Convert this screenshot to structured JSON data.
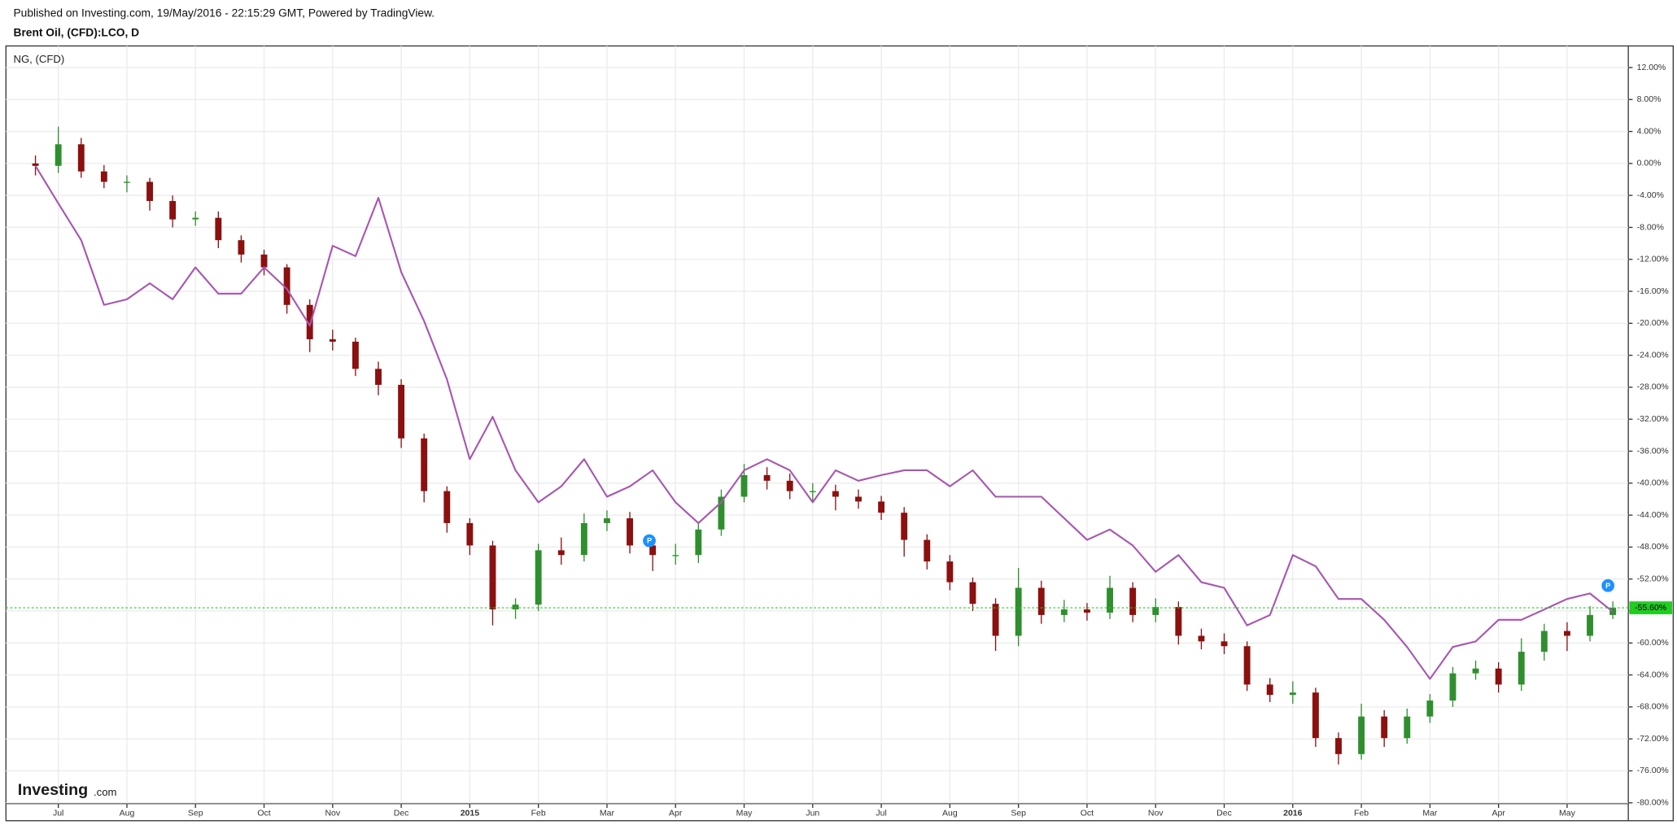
{
  "chart_data": {
    "type": "candlestick",
    "published": "Published on Investing.com, 19/May/2016 - 22:15:29 GMT, Powered by TradingView.",
    "categories": [
      null,
      "Jul",
      null,
      null,
      "Aug",
      null,
      null,
      "Sep",
      null,
      null,
      "Oct",
      null,
      null,
      "Nov",
      null,
      null,
      "Dec",
      null,
      null,
      "2015",
      null,
      null,
      "Feb",
      null,
      null,
      "Mar",
      null,
      null,
      "Apr",
      null,
      null,
      "May",
      null,
      null,
      "Jun",
      null,
      null,
      "Jul",
      null,
      null,
      "Aug",
      null,
      null,
      "Sep",
      null,
      null,
      "Oct",
      null,
      null,
      "Nov",
      null,
      null,
      "Dec",
      null,
      null,
      "2016",
      null,
      null,
      "Feb",
      null,
      null,
      "Mar",
      null,
      null,
      "Apr",
      null,
      null,
      "May",
      null,
      null
    ],
    "series": [
      {
        "name": "Brent Oil, (CFD):LCO, D",
        "type": "candlestick",
        "up_color": "#2f8f2f",
        "down_color": "#8b1010",
        "open": [
          0,
          -0.3,
          2.4,
          -1,
          -2.3,
          -2.3,
          -4.7,
          -7,
          -6.8,
          -9.6,
          -11.4,
          -13,
          -17.7,
          -22,
          -22.3,
          -25.7,
          -27.7,
          -34.4,
          -41,
          -45,
          -47.8,
          -55.8,
          -55.2,
          -48.4,
          -49,
          -45,
          -44.4,
          -47.8,
          -49,
          -49,
          -45.8,
          -41.7,
          -39,
          -39.7,
          -41,
          -41,
          -41.7,
          -42.3,
          -43.7,
          -47.1,
          -49.8,
          -52.4,
          -55.1,
          -59.1,
          -53.1,
          -56.5,
          -55.8,
          -56.2,
          -53.1,
          -56.5,
          -55.5,
          -59.1,
          -59.8,
          -60.4,
          -65.2,
          -66.5,
          -66.2,
          -71.9,
          -73.9,
          -69.2,
          -71.9,
          -69.2,
          -67.2,
          -63.8,
          -63.2,
          -65.2,
          -61.1,
          -58.5,
          -59.1,
          -56.5
        ],
        "high": [
          1.0,
          4.6,
          3.2,
          -0.2,
          -1.5,
          -1.8,
          -4.0,
          -6.0,
          -6.0,
          -9.0,
          -10.8,
          -12.6,
          -17.0,
          -20.8,
          -21.8,
          -24.8,
          -27.0,
          -33.8,
          -40.4,
          -44.4,
          -47.2,
          -54.4,
          -47.6,
          -46.8,
          -43.8,
          -43.4,
          -43.6,
          -46.8,
          -47.6,
          -45.0,
          -40.8,
          -37.6,
          -38.0,
          -38.8,
          -40.0,
          -40.2,
          -40.8,
          -41.6,
          -43.0,
          -46.4,
          -49.0,
          -51.8,
          -54.4,
          -50.6,
          -52.2,
          -54.6,
          -55.0,
          -51.6,
          -52.4,
          -54.4,
          -54.8,
          -58.2,
          -58.8,
          -59.8,
          -64.4,
          -64.8,
          -65.6,
          -71.2,
          -67.6,
          -68.4,
          -68.2,
          -66.4,
          -63.0,
          -62.2,
          -62.4,
          -59.4,
          -57.6,
          -57.4,
          -55.4,
          -54.8
        ],
        "low": [
          -1.5,
          -1.2,
          -1.8,
          -3.1,
          -3.6,
          -5.9,
          -8.0,
          -7.8,
          -10.6,
          -12.4,
          -14.0,
          -18.8,
          -23.6,
          -23.4,
          -26.6,
          -29.0,
          -35.6,
          -42.4,
          -46.2,
          -49.0,
          -57.8,
          -57.0,
          -56.0,
          -50.2,
          -49.8,
          -46.0,
          -48.8,
          -51.0,
          -50.2,
          -50.0,
          -46.6,
          -42.4,
          -40.8,
          -42.0,
          -42.4,
          -43.4,
          -43.2,
          -44.6,
          -49.2,
          -50.8,
          -53.4,
          -56.0,
          -61.0,
          -60.4,
          -57.6,
          -57.4,
          -57.2,
          -57.0,
          -57.4,
          -57.4,
          -60.2,
          -60.8,
          -61.4,
          -66.0,
          -67.4,
          -67.6,
          -73.0,
          -75.2,
          -74.6,
          -73.0,
          -72.6,
          -70.0,
          -68.0,
          -64.6,
          -66.2,
          -66.0,
          -62.2,
          -61.0,
          -59.8,
          -57.0
        ],
        "close": [
          -0.3,
          2.4,
          -1,
          -2.3,
          -2.3,
          -4.7,
          -7,
          -6.8,
          -9.6,
          -11.4,
          -13,
          -17.7,
          -22,
          -22.3,
          -25.7,
          -27.7,
          -34.4,
          -41,
          -45,
          -47.8,
          -55.8,
          -55.2,
          -48.4,
          -49,
          -45,
          -44.4,
          -47.8,
          -49,
          -49,
          -45.8,
          -41.7,
          -39,
          -39.7,
          -41,
          -41,
          -41.7,
          -42.3,
          -43.7,
          -47.1,
          -49.8,
          -52.4,
          -55.1,
          -59.1,
          -53.1,
          -56.5,
          -55.8,
          -56.2,
          -53.1,
          -56.5,
          -55.5,
          -59.1,
          -59.8,
          -60.4,
          -65.2,
          -66.5,
          -66.2,
          -71.9,
          -73.9,
          -69.2,
          -71.9,
          -69.2,
          -67.2,
          -63.8,
          -63.2,
          -65.2,
          -61.1,
          -58.5,
          -59.1,
          -56.5,
          -55.6
        ]
      },
      {
        "name": "NG,  (CFD)",
        "type": "line",
        "color": "#a855b0",
        "values": [
          -0.3,
          -5,
          -9.6,
          -17.7,
          -17,
          -15,
          -17,
          -13,
          -16.3,
          -16.3,
          -13,
          -15.7,
          -20.3,
          -10.3,
          -11.6,
          -4.3,
          -13.6,
          -19.7,
          -27,
          -37,
          -31.7,
          -38.4,
          -42.4,
          -40.4,
          -37,
          -41.7,
          -40.4,
          -38.4,
          -42.4,
          -45,
          -42.4,
          -38.4,
          -37,
          -38.4,
          -42.4,
          -38.4,
          -39.7,
          -39,
          -38.4,
          -38.4,
          -40.4,
          -38.4,
          -41.7,
          -41.7,
          -41.7,
          -44.4,
          -47.1,
          -45.8,
          -47.8,
          -51.1,
          -49,
          -52.4,
          -53.1,
          -57.8,
          -56.5,
          -49,
          -50.4,
          -54.5,
          -54.5,
          -57.1,
          -60.5,
          -64.5,
          -60.5,
          -59.8,
          -57.1,
          -57.1,
          -55.8,
          -54.5,
          -53.8,
          -56.1
        ]
      }
    ],
    "last_value": {
      "value": -55.6,
      "label": "-55.60%",
      "color": "#22cc22"
    },
    "ylim": [
      -80.1,
      14.7
    ],
    "yticks": [
      {
        "value": 12,
        "label": "12.00%"
      },
      {
        "value": 8,
        "label": "8.00%"
      },
      {
        "value": 4,
        "label": "4.00%"
      },
      {
        "value": 0,
        "label": "0.00%"
      },
      {
        "value": -4,
        "label": "-4.00%"
      },
      {
        "value": -8,
        "label": "-8.00%"
      },
      {
        "value": -12,
        "label": "-12.00%"
      },
      {
        "value": -16,
        "label": "-16.00%"
      },
      {
        "value": -20,
        "label": "-20.00%"
      },
      {
        "value": -24,
        "label": "-24.00%"
      },
      {
        "value": -28,
        "label": "-28.00%"
      },
      {
        "value": -32,
        "label": "-32.00%"
      },
      {
        "value": -36,
        "label": "-36.00%"
      },
      {
        "value": -40,
        "label": "-40.00%"
      },
      {
        "value": -44,
        "label": "-44.00%"
      },
      {
        "value": -48,
        "label": "-48.00%"
      },
      {
        "value": -52,
        "label": "-52.00%"
      },
      {
        "value": -56,
        "label": "-56.00%"
      },
      {
        "value": -60,
        "label": "-60.00%"
      },
      {
        "value": -64,
        "label": "-64.00%"
      },
      {
        "value": -68,
        "label": "-68.00%"
      },
      {
        "value": -72,
        "label": "-72.00%"
      },
      {
        "value": -76,
        "label": "-76.00%"
      },
      {
        "value": -80,
        "label": "-80.00%"
      }
    ],
    "grid": true,
    "markers": [
      "P",
      "P"
    ],
    "logo": {
      "brand": "Investing",
      "suffix": ".com"
    }
  }
}
